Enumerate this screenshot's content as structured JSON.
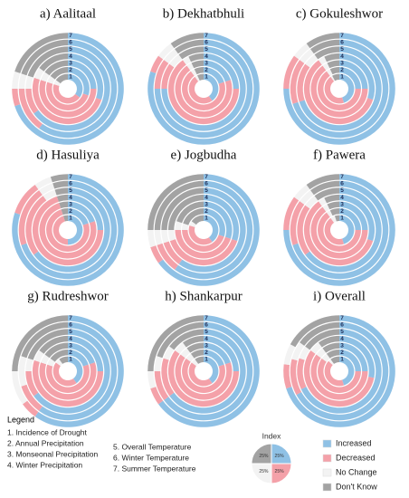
{
  "chart_data": [
    {
      "type": "radial-bar",
      "title": "a) Aalitaal",
      "categories": [
        "1",
        "2",
        "3",
        "4",
        "5",
        "6",
        "7"
      ],
      "series": [
        {
          "name": "Increased",
          "color": "#8fc1e5",
          "values": [
            35,
            30,
            25,
            30,
            65,
            60,
            70
          ]
        },
        {
          "name": "Decreased",
          "color": "#f4a1a9",
          "values": [
            45,
            50,
            55,
            50,
            10,
            15,
            5
          ]
        },
        {
          "name": "No Change",
          "color": "#f3f3f3",
          "values": [
            5,
            5,
            5,
            5,
            5,
            5,
            5
          ]
        },
        {
          "name": "Don't Know",
          "color": "#a3a3a3",
          "values": [
            15,
            15,
            15,
            15,
            20,
            20,
            20
          ]
        }
      ]
    },
    {
      "type": "radial-bar",
      "title": "b) Dekhatbhuli",
      "categories": [
        "1",
        "2",
        "3",
        "4",
        "5",
        "6",
        "7"
      ],
      "series": [
        {
          "name": "Increased",
          "color": "#8fc1e5",
          "values": [
            40,
            20,
            20,
            25,
            75,
            75,
            80
          ]
        },
        {
          "name": "Decreased",
          "color": "#f4a1a9",
          "values": [
            50,
            70,
            70,
            65,
            10,
            10,
            5
          ]
        },
        {
          "name": "No Change",
          "color": "#f3f3f3",
          "values": [
            3,
            3,
            3,
            3,
            5,
            5,
            5
          ]
        },
        {
          "name": "Don't Know",
          "color": "#a3a3a3",
          "values": [
            7,
            7,
            7,
            7,
            10,
            10,
            10
          ]
        }
      ]
    },
    {
      "type": "radial-bar",
      "title": "c) Gokuleshwor",
      "categories": [
        "1",
        "2",
        "3",
        "4",
        "5",
        "6",
        "7"
      ],
      "series": [
        {
          "name": "Increased",
          "color": "#8fc1e5",
          "values": [
            45,
            25,
            25,
            30,
            70,
            70,
            75
          ]
        },
        {
          "name": "Decreased",
          "color": "#f4a1a9",
          "values": [
            45,
            65,
            65,
            60,
            15,
            15,
            10
          ]
        },
        {
          "name": "No Change",
          "color": "#f3f3f3",
          "values": [
            2,
            3,
            3,
            3,
            5,
            5,
            5
          ]
        },
        {
          "name": "Don't Know",
          "color": "#a3a3a3",
          "values": [
            8,
            7,
            7,
            7,
            10,
            10,
            10
          ]
        }
      ]
    },
    {
      "type": "radial-bar",
      "title": "d) Hasuliya",
      "categories": [
        "1",
        "2",
        "3",
        "4",
        "5",
        "6",
        "7"
      ],
      "series": [
        {
          "name": "Increased",
          "color": "#8fc1e5",
          "values": [
            50,
            20,
            20,
            25,
            65,
            70,
            80
          ]
        },
        {
          "name": "Decreased",
          "color": "#f4a1a9",
          "values": [
            45,
            75,
            75,
            70,
            25,
            20,
            10
          ]
        },
        {
          "name": "No Change",
          "color": "#f3f3f3",
          "values": [
            0,
            0,
            0,
            0,
            5,
            5,
            5
          ]
        },
        {
          "name": "Don't Know",
          "color": "#a3a3a3",
          "values": [
            5,
            5,
            5,
            5,
            5,
            5,
            5
          ]
        }
      ]
    },
    {
      "type": "radial-bar",
      "title": "e) Jogbudha",
      "categories": [
        "1",
        "2",
        "3",
        "4",
        "5",
        "6",
        "7"
      ],
      "series": [
        {
          "name": "Increased",
          "color": "#8fc1e5",
          "values": [
            40,
            30,
            30,
            30,
            60,
            60,
            65
          ]
        },
        {
          "name": "Decreased",
          "color": "#f4a1a9",
          "values": [
            40,
            45,
            45,
            40,
            10,
            10,
            5
          ]
        },
        {
          "name": "No Change",
          "color": "#f3f3f3",
          "values": [
            5,
            5,
            5,
            5,
            5,
            5,
            5
          ]
        },
        {
          "name": "Don't Know",
          "color": "#a3a3a3",
          "values": [
            15,
            20,
            20,
            25,
            25,
            25,
            25
          ]
        }
      ]
    },
    {
      "type": "radial-bar",
      "title": "f) Pawera",
      "categories": [
        "1",
        "2",
        "3",
        "4",
        "5",
        "6",
        "7"
      ],
      "series": [
        {
          "name": "Increased",
          "color": "#8fc1e5",
          "values": [
            45,
            25,
            25,
            30,
            65,
            70,
            75
          ]
        },
        {
          "name": "Decreased",
          "color": "#f4a1a9",
          "values": [
            45,
            65,
            65,
            60,
            20,
            15,
            10
          ]
        },
        {
          "name": "No Change",
          "color": "#f3f3f3",
          "values": [
            5,
            3,
            3,
            3,
            5,
            5,
            5
          ]
        },
        {
          "name": "Don't Know",
          "color": "#a3a3a3",
          "values": [
            5,
            7,
            7,
            7,
            10,
            10,
            10
          ]
        }
      ]
    },
    {
      "type": "radial-bar",
      "title": "g) Rudreshwor",
      "categories": [
        "1",
        "2",
        "3",
        "4",
        "5",
        "6",
        "7"
      ],
      "series": [
        {
          "name": "Increased",
          "color": "#8fc1e5",
          "values": [
            40,
            20,
            20,
            25,
            65,
            60,
            60
          ]
        },
        {
          "name": "Decreased",
          "color": "#f4a1a9",
          "values": [
            45,
            60,
            60,
            55,
            10,
            10,
            5
          ]
        },
        {
          "name": "No Change",
          "color": "#f3f3f3",
          "values": [
            5,
            5,
            5,
            5,
            5,
            10,
            10
          ]
        },
        {
          "name": "Don't Know",
          "color": "#a3a3a3",
          "values": [
            10,
            15,
            15,
            15,
            20,
            20,
            25
          ]
        }
      ]
    },
    {
      "type": "radial-bar",
      "title": "h) Shankarpur",
      "categories": [
        "1",
        "2",
        "3",
        "4",
        "5",
        "6",
        "7"
      ],
      "series": [
        {
          "name": "Increased",
          "color": "#8fc1e5",
          "values": [
            40,
            20,
            20,
            25,
            65,
            65,
            65
          ]
        },
        {
          "name": "Decreased",
          "color": "#f4a1a9",
          "values": [
            45,
            65,
            65,
            60,
            15,
            10,
            5
          ]
        },
        {
          "name": "No Change",
          "color": "#f3f3f3",
          "values": [
            5,
            5,
            5,
            5,
            5,
            5,
            5
          ]
        },
        {
          "name": "Don't Know",
          "color": "#a3a3a3",
          "values": [
            10,
            10,
            10,
            10,
            15,
            20,
            25
          ]
        }
      ]
    },
    {
      "type": "radial-bar",
      "title": "i) Overall",
      "categories": [
        "1",
        "2",
        "3",
        "4",
        "5",
        "6",
        "7"
      ],
      "series": [
        {
          "name": "Increased",
          "color": "#8fc1e5",
          "values": [
            45,
            25,
            25,
            28,
            68,
            67,
            70
          ]
        },
        {
          "name": "Decreased",
          "color": "#f4a1a9",
          "values": [
            42,
            60,
            60,
            57,
            12,
            12,
            7
          ]
        },
        {
          "name": "No Change",
          "color": "#f3f3f3",
          "values": [
            3,
            5,
            5,
            5,
            5,
            6,
            6
          ]
        },
        {
          "name": "Don't Know",
          "color": "#a3a3a3",
          "values": [
            10,
            10,
            10,
            10,
            15,
            15,
            17
          ]
        }
      ]
    },
    {
      "type": "pie",
      "title": "Index",
      "values": [
        25,
        25,
        25,
        25
      ],
      "value_labels": [
        "25%",
        "25%",
        "25%",
        "25%"
      ],
      "colors": [
        "#8fc1e5",
        "#f4a1a9",
        "#f3f3f3",
        "#a3a3a3"
      ]
    }
  ],
  "legend": {
    "title": "Legend",
    "items": [
      "1. Incidence of Drought",
      "2. Annual Precipitation",
      "3. Monseonal Precipitation",
      "4. Winter Precipitation",
      "5. Overall Temperature",
      "6. Winter Temperature",
      "7. Summer Temperature"
    ]
  }
}
